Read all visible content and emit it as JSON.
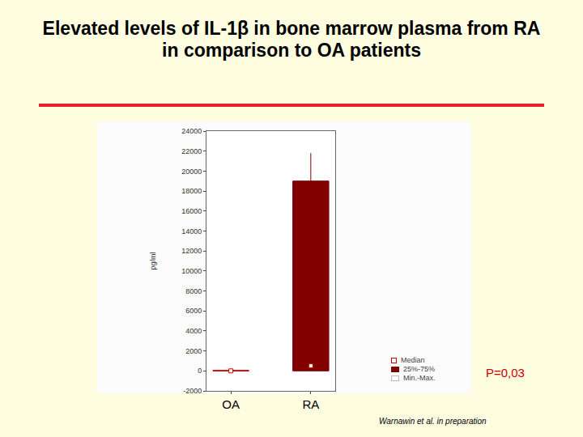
{
  "chart_data": {
    "type": "box",
    "title": "Elevated levels of IL-1β in bone marrow plasma from RA in comparison to OA patients",
    "y_label": "pg/ml",
    "categories": [
      "OA",
      "RA"
    ],
    "min": [
      0,
      0
    ],
    "q1": [
      0,
      0
    ],
    "median": [
      0,
      500
    ],
    "q3": [
      50,
      19000
    ],
    "max": [
      100,
      21800
    ],
    "colors": [
      "#cc0000",
      "#800000"
    ],
    "ylim": [
      -2000,
      24000
    ],
    "yticks": [
      -2000,
      0,
      2000,
      4000,
      6000,
      8000,
      10000,
      12000,
      14000,
      16000,
      18000,
      20000,
      22000,
      24000
    ],
    "legend_entries": [
      "Median",
      "25%-75%",
      "Min.-Max."
    ],
    "annotations": [
      "P=0,03",
      "Warnawin et al. in preparation"
    ],
    "grid": false
  }
}
